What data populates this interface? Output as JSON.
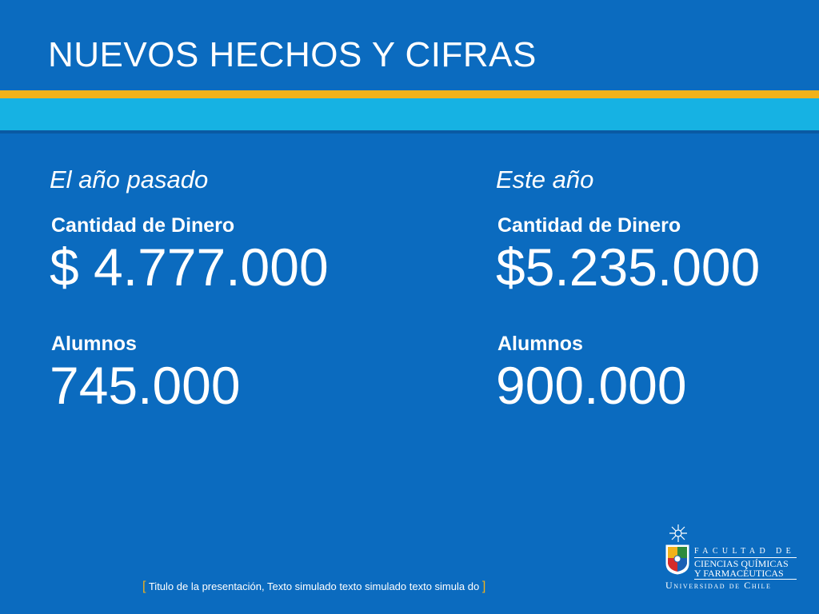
{
  "slide": {
    "title": "NUEVOS HECHOS Y CIFRAS",
    "colors": {
      "background": "#0b6bbf",
      "stripe_yellow": "#f2b21a",
      "stripe_cyan": "#16b2e3",
      "text": "#ffffff"
    }
  },
  "columns": [
    {
      "heading": "El año pasado",
      "money_label": "Cantidad de Dinero",
      "money_value": "$ 4.777.000",
      "students_label": "Alumnos",
      "students_value": "745.000"
    },
    {
      "heading": "Este año",
      "money_label": "Cantidad de Dinero",
      "money_value": "$5.235.000",
      "students_label": "Alumnos",
      "students_value": "900.000"
    }
  ],
  "footer": {
    "open_bracket": "[",
    "text": "Titulo de la presentación, Texto simulado texto simulado texto simula do",
    "close_bracket": "]"
  },
  "logo": {
    "line1": "FACULTAD DE",
    "line2": "CIENCIAS QUÍMICAS",
    "line3": "Y FARMACÉUTICAS",
    "university": "Universidad de Chile",
    "icons": [
      "sun-star-icon",
      "coat-of-arms-icon"
    ]
  }
}
